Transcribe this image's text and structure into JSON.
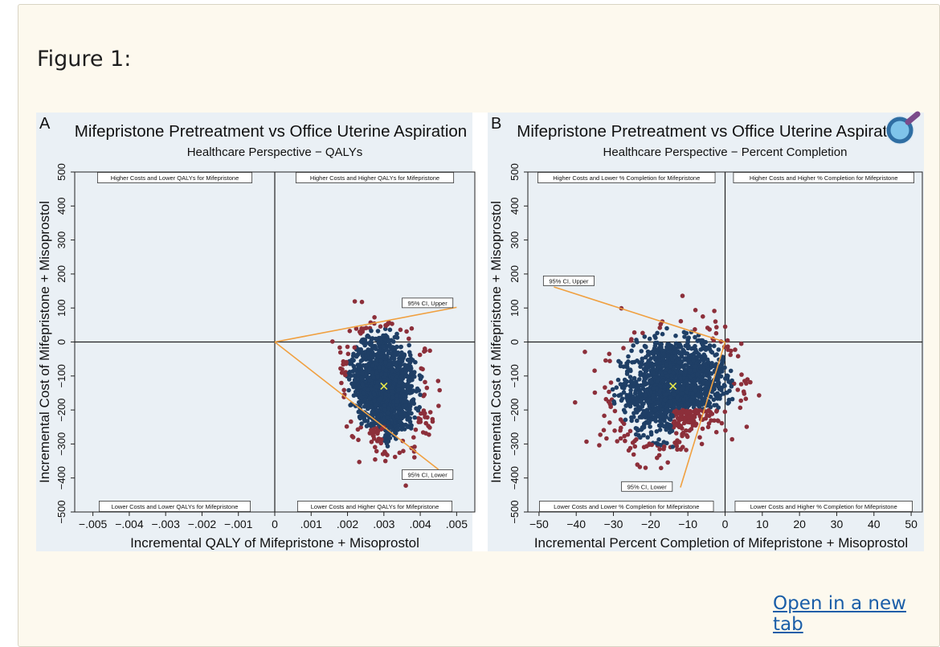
{
  "figure": {
    "label": "Figure 1:",
    "open_link": "Open in a new tab"
  },
  "colors": {
    "panel_bg": "#eaf0f5",
    "inner_points": "#1f3f66",
    "outer_points": "#8c2f3a",
    "ci_lines": "#f0a040",
    "mean_marker": "#e8e84a"
  },
  "chart_data": [
    {
      "type": "scatter",
      "panel_letter": "A",
      "title": "Mifepristone Pretreatment vs Office Uterine Aspiration",
      "subtitle": "Healthcare Perspective − QALYs",
      "xlabel": "Incremental QALY of Mifepristone + Misoprostol",
      "ylabel": "Incremental Cost of Mifepristone + Misoprostol",
      "xlim": [
        -0.0055,
        0.0055
      ],
      "ylim": [
        -500,
        500
      ],
      "xticks": [
        -0.005,
        -0.004,
        -0.003,
        -0.002,
        -0.001,
        0,
        0.001,
        0.002,
        0.003,
        0.004,
        0.005
      ],
      "xtick_labels": [
        "−.005",
        "−.004",
        "−.003",
        "−.002",
        "−.001",
        "0",
        ".001",
        ".002",
        ".003",
        ".004",
        ".005"
      ],
      "yticks": [
        -500,
        -400,
        -300,
        -200,
        -100,
        0,
        100,
        200,
        300,
        400,
        500
      ],
      "ytick_labels": [
        "−500",
        "−400",
        "−300",
        "−200",
        "−100",
        "0",
        "100",
        "200",
        "300",
        "400",
        "500"
      ],
      "quadrant_labels": {
        "top_left": "Higher Costs and Lower QALYs for Mifepristone",
        "top_right": "Higher Costs and Higher QALYs for Mifepristone",
        "bottom_left": "Lower Costs and Lower QALYs for Mifepristone",
        "bottom_right": "Lower Costs and Higher QALYs for Mifepristone"
      },
      "cloud": {
        "center_x": 0.003,
        "center_y": -133,
        "sd_x": 0.00045,
        "sd_y": 75,
        "corr": -0.2
      },
      "mean_point": {
        "x": 0.003,
        "y": -130
      },
      "ci_upper": {
        "label": "95% CI, Upper",
        "end": {
          "x": 0.005,
          "y": 102
        },
        "label_at": {
          "x": 0.0042,
          "y": 115
        }
      },
      "ci_lower": {
        "label": "95% CI, Lower",
        "end": {
          "x": 0.0045,
          "y": -375
        },
        "label_at": {
          "x": 0.0042,
          "y": -390
        }
      }
    },
    {
      "type": "scatter",
      "panel_letter": "B",
      "title": "Mifepristone Pretreatment vs Office Uterine Aspiration",
      "subtitle": "Healthcare Perspective − Percent Completion",
      "xlabel": "Incremental Percent Completion of Mifepristone + Misoprostol",
      "ylabel": "Incremental Cost of Mifepristone + Misoprostol",
      "xlim": [
        -53,
        53
      ],
      "ylim": [
        -500,
        500
      ],
      "xticks": [
        -50,
        -40,
        -30,
        -20,
        -10,
        0,
        10,
        20,
        30,
        40,
        50
      ],
      "xtick_labels": [
        "−50",
        "−40",
        "−30",
        "−20",
        "−10",
        "0",
        "10",
        "20",
        "30",
        "40",
        "50"
      ],
      "yticks": [
        -500,
        -400,
        -300,
        -200,
        -100,
        0,
        100,
        200,
        300,
        400,
        500
      ],
      "ytick_labels": [
        "−500",
        "−400",
        "−300",
        "−200",
        "−100",
        "0",
        "100",
        "200",
        "300",
        "400",
        "500"
      ],
      "quadrant_labels": {
        "top_left": "Higher Costs and Lower % Completion for Mifepristone",
        "top_right": "Higher Costs and Higher % Completion for Mifepristone",
        "bottom_left": "Lower Costs and Lower % Completion for Mifepristone",
        "bottom_right": "Lower Costs and Higher % Completion for Mifepristone"
      },
      "cloud": {
        "center_x": -14,
        "center_y": -133,
        "sd_x": 7,
        "sd_y": 75,
        "corr": 0.2
      },
      "mean_point": {
        "x": -14,
        "y": -130
      },
      "ci_upper": {
        "label": "95% CI, Upper",
        "end": {
          "x": -46,
          "y": 162
        },
        "label_at": {
          "x": -42,
          "y": 180
        }
      },
      "ci_lower": {
        "label": "95% CI, Lower",
        "end": {
          "x": -12,
          "y": -428
        },
        "label_at": {
          "x": -21,
          "y": -425
        }
      }
    }
  ]
}
